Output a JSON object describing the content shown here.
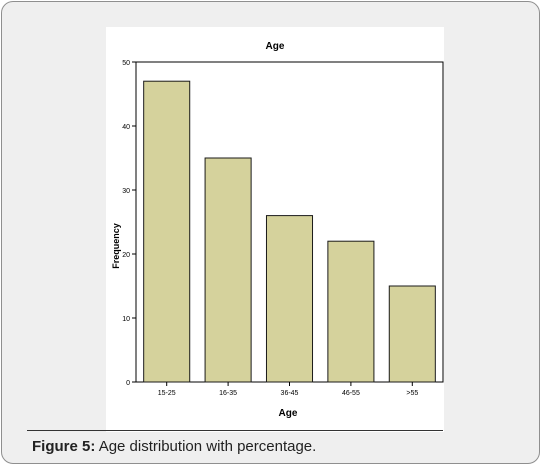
{
  "caption": {
    "label": "Figure 5:",
    "text": "Age distribution with percentage."
  },
  "chart_data": {
    "type": "bar",
    "title": "Age",
    "xlabel": "Age",
    "ylabel": "Frequency",
    "categories": [
      "15-25",
      "16-35",
      "36-45",
      "46-55",
      ">55"
    ],
    "values": [
      47,
      35,
      26,
      22,
      15
    ],
    "ylim": [
      0,
      50
    ],
    "yticks": [
      0,
      10,
      20,
      30,
      40,
      50
    ],
    "grid": false,
    "legend": "none",
    "bar_color": "#d5d29c",
    "bar_edge_color": "#1a1a1a",
    "plot_background": "#ffffff"
  }
}
